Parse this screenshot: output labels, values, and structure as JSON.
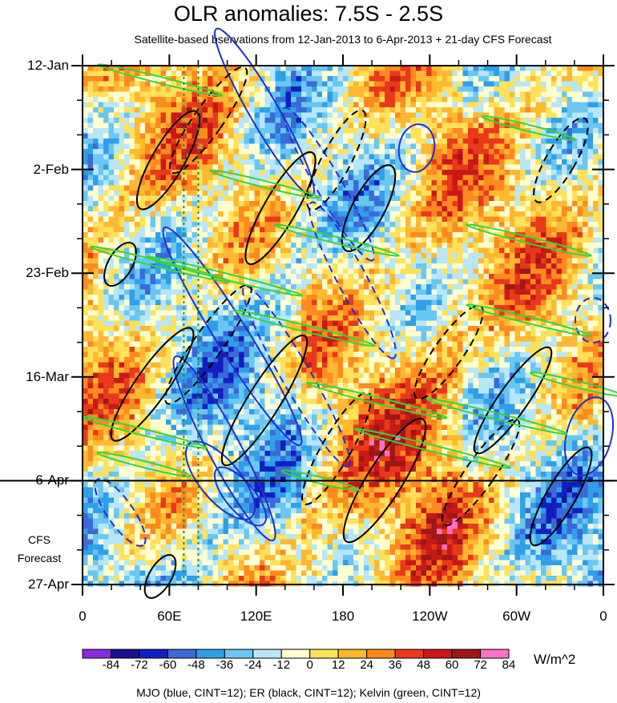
{
  "title": "OLR anomalies: 7.5S - 2.5S",
  "subtitle": "Satellite-based bservations from 12-Jan-2013 to 6-Apr-2013 + 21-day CFS Forecast",
  "forecast_label_line1": "CFS",
  "forecast_label_line2": "Forecast",
  "colorbar_units": "W/m^2",
  "footnote": "MJO (blue, CINT=12); ER (black, CINT=12); Kelvin (green, CINT=12)",
  "colors": {
    "mjo": "#1f2fd0",
    "er": "#000000",
    "kelvin": "#36d43a",
    "colorbar": [
      "#8a2be2",
      "#1a0f8f",
      "#1020c0",
      "#3a6ad8",
      "#2f9fe8",
      "#6ac6f2",
      "#b8e6fa",
      "#ffffd2",
      "#ffe15a",
      "#ffb830",
      "#ff8a1f",
      "#e83a1a",
      "#c81818",
      "#a01616",
      "#ff70c8"
    ]
  },
  "chart_data": {
    "type": "heatmap",
    "description_kind": "Hovmoller longitude-time diagram",
    "x_tick_labels": [
      "0",
      "60E",
      "120E",
      "180",
      "120W",
      "60W",
      "0"
    ],
    "x_range_deg_east": [
      0,
      360
    ],
    "y_tick_labels": [
      "12-Jan",
      "2-Feb",
      "23-Feb",
      "16-Mar",
      "6-Apr",
      "27-Apr"
    ],
    "y_range": [
      "12-Jan-2013",
      "27-Apr-2013"
    ],
    "forecast_start": "6-Apr",
    "colorbar_levels": [
      "-84",
      "-72",
      "-60",
      "-48",
      "-36",
      "-24",
      "-12",
      "0",
      "12",
      "24",
      "36",
      "48",
      "60",
      "72",
      "84"
    ],
    "contour_interval": 12,
    "overlays": [
      {
        "name": "MJO",
        "color": "blue",
        "cint": 12
      },
      {
        "name": "ER",
        "color": "black",
        "cint": 12
      },
      {
        "name": "Kelvin",
        "color": "green",
        "cint": 12
      }
    ]
  }
}
